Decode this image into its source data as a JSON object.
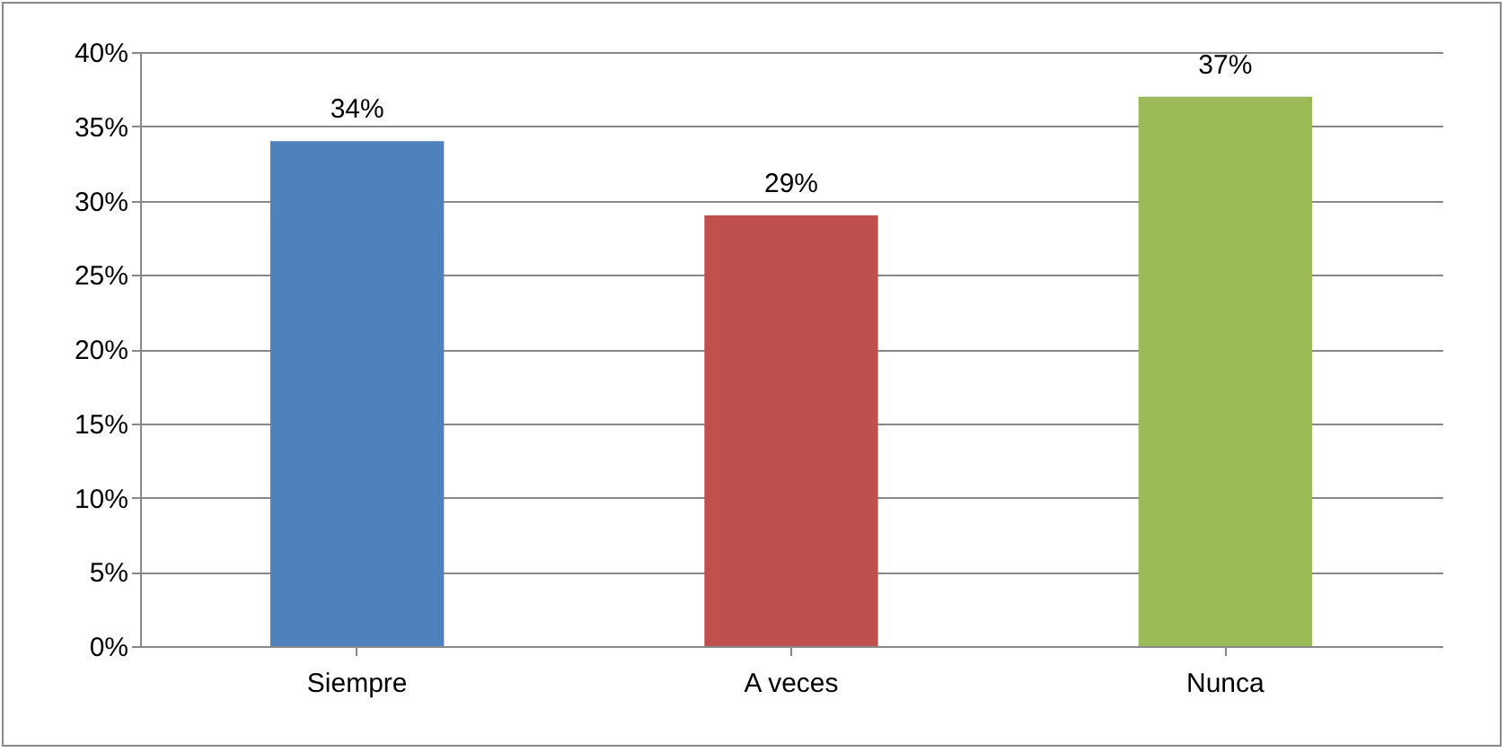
{
  "chart_data": {
    "type": "bar",
    "categories": [
      "Siempre",
      "A veces",
      "Nunca"
    ],
    "values": [
      34,
      29,
      37
    ],
    "colors": [
      "#4f81bd",
      "#c0504d",
      "#9bbb59"
    ],
    "value_labels": [
      "34%",
      "29%",
      "37%"
    ],
    "ylim": [
      0,
      40
    ],
    "yticks": [
      {
        "value": 0,
        "label": "0%"
      },
      {
        "value": 5,
        "label": "5%"
      },
      {
        "value": 10,
        "label": "10%"
      },
      {
        "value": 15,
        "label": "15%"
      },
      {
        "value": 20,
        "label": "20%"
      },
      {
        "value": 25,
        "label": "25%"
      },
      {
        "value": 30,
        "label": "30%"
      },
      {
        "value": 35,
        "label": "35%"
      },
      {
        "value": 40,
        "label": "40%"
      }
    ],
    "grid": "y"
  }
}
